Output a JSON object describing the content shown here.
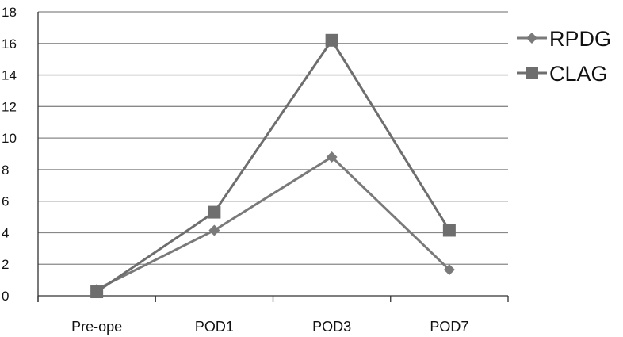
{
  "chart_data": {
    "type": "line",
    "title": "",
    "xlabel": "",
    "ylabel": "",
    "categories": [
      "Pre-ope",
      "POD1",
      "POD3",
      "POD7"
    ],
    "ylim": [
      0,
      18
    ],
    "yticks": [
      0,
      2,
      4,
      6,
      8,
      10,
      12,
      14,
      16,
      18
    ],
    "grid": true,
    "legend_position": "right",
    "series": [
      {
        "name": "RPDG",
        "marker": "diamond",
        "color": "#7a7a7a",
        "values": [
          0.4,
          4.15,
          8.8,
          1.65
        ]
      },
      {
        "name": "CLAG",
        "marker": "square",
        "color": "#6e6e6e",
        "values": [
          0.25,
          5.3,
          16.2,
          4.15
        ]
      }
    ]
  }
}
